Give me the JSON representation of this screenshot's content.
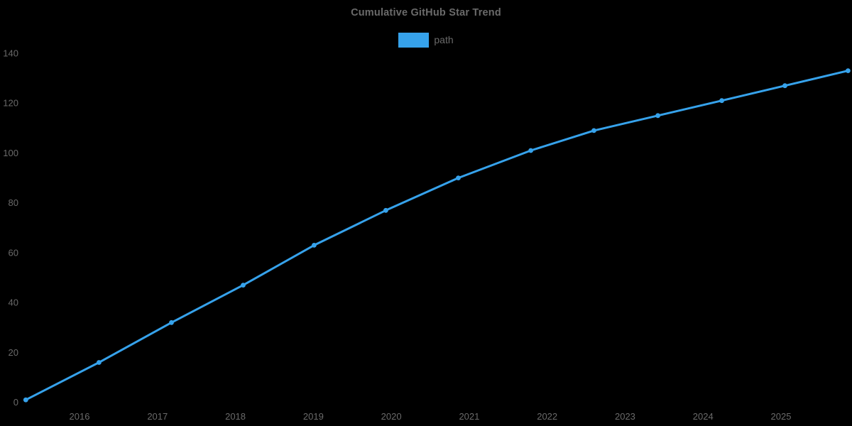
{
  "chart": {
    "title": "Cumulative GitHub Star Trend",
    "legend_label": "path",
    "colors": {
      "line": "#36A2EB",
      "point": "#36A2EB",
      "text": "#6a6a6a",
      "background": "#000000"
    }
  },
  "chart_data": {
    "type": "line",
    "title": "Cumulative GitHub Star Trend",
    "legend": [
      "path"
    ],
    "legend_position": "top",
    "grid": false,
    "xlabel": "",
    "ylabel": "",
    "x_axis": {
      "type": "time",
      "tick_labels": [
        "2016",
        "2017",
        "2018",
        "2019",
        "2020",
        "2021",
        "2022",
        "2023",
        "2024",
        "2025"
      ],
      "tick_years": [
        2016,
        2017,
        2018,
        2019,
        2020,
        2021,
        2022,
        2023,
        2024,
        2025
      ]
    },
    "y_axis": {
      "tick_labels": [
        "0",
        "20",
        "40",
        "60",
        "80",
        "100",
        "120",
        "140"
      ],
      "ticks": [
        0,
        20,
        40,
        60,
        80,
        100,
        120,
        140
      ],
      "range": [
        0,
        140
      ]
    },
    "series": [
      {
        "name": "path",
        "color": "#36A2EB",
        "points": [
          {
            "x": 2015.31,
            "y": 1
          },
          {
            "x": 2016.25,
            "y": 16
          },
          {
            "x": 2017.18,
            "y": 32
          },
          {
            "x": 2018.1,
            "y": 47
          },
          {
            "x": 2019.01,
            "y": 63
          },
          {
            "x": 2019.93,
            "y": 77
          },
          {
            "x": 2020.86,
            "y": 90
          },
          {
            "x": 2021.79,
            "y": 101
          },
          {
            "x": 2022.6,
            "y": 109
          },
          {
            "x": 2023.42,
            "y": 115
          },
          {
            "x": 2024.24,
            "y": 121
          },
          {
            "x": 2025.05,
            "y": 127
          },
          {
            "x": 2025.86,
            "y": 133
          }
        ]
      }
    ]
  }
}
